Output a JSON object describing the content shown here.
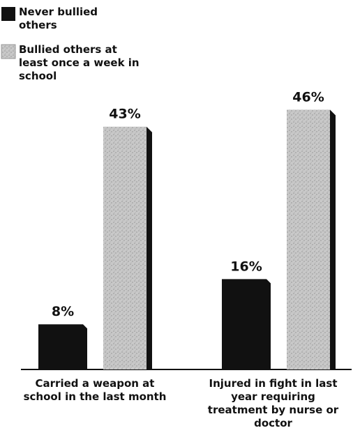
{
  "chart_data": {
    "type": "bar",
    "categories": [
      "Carried a weapon at school in the last month",
      "Injured in fight in last year requiring treatment by nurse or doctor"
    ],
    "series": [
      {
        "name": "Never bullied others",
        "color": "#111111",
        "values": [
          8,
          16
        ],
        "value_labels": [
          "8%",
          "16%"
        ]
      },
      {
        "name": "Bullied others at least once a week in school",
        "color": "#c8c8c8",
        "values": [
          43,
          46
        ],
        "value_labels": [
          "43%",
          "46%"
        ]
      }
    ]
  }
}
